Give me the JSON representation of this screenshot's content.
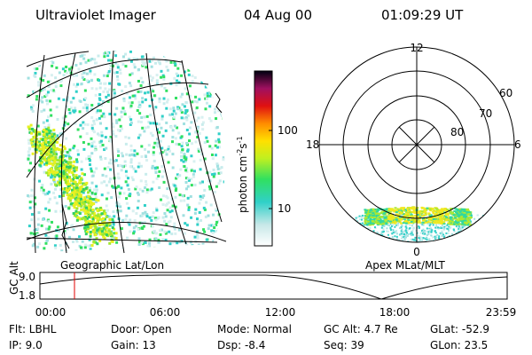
{
  "header": {
    "title": "Ultraviolet Imager",
    "date": "04 Aug 00",
    "time": "01:09:29 UT"
  },
  "colorbar": {
    "label": [
      "photon cm",
      "-2",
      "s",
      "-1"
    ],
    "ticks": [
      "100",
      "10"
    ]
  },
  "polar": {
    "labels": [
      "12",
      "18",
      "6",
      "0",
      "60",
      "70",
      "80"
    ]
  },
  "captions": [
    "Geographic Lat/Lon",
    "Apex MLat/MLT"
  ],
  "altitude": {
    "label": "GC Alt",
    "yticks": [
      "9.0",
      "1.8"
    ],
    "xticks": [
      "00:00",
      "06:00",
      "12:00",
      "18:00",
      "23:59"
    ]
  },
  "footer": {
    "rows": [
      [
        "Flt: LBHL",
        "Door: Open",
        "Mode: Normal",
        "GC Alt: 4.7 Re",
        "GLat: -52.9"
      ],
      [
        "IP: 9.0",
        "Gain: 13",
        "Dsp: -8.4",
        "Seq: 39",
        "GLon: 23.5"
      ]
    ]
  }
}
